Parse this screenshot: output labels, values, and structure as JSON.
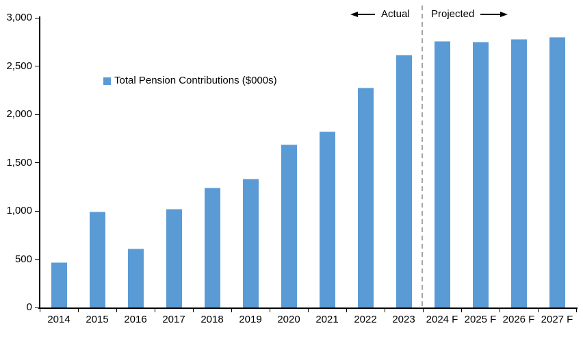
{
  "chart_data": {
    "type": "bar",
    "title": "",
    "legend": "Total Pension Contributions ($000s)",
    "categories": [
      "2014",
      "2015",
      "2016",
      "2017",
      "2018",
      "2019",
      "2020",
      "2021",
      "2022",
      "2023",
      "2024 F",
      "2025 F",
      "2026 F",
      "2027 F"
    ],
    "values": [
      470,
      990,
      610,
      1020,
      1240,
      1330,
      1690,
      1820,
      2280,
      2620,
      2760,
      2750,
      2780,
      2800
    ],
    "xlabel": "",
    "ylabel": "",
    "ylim": [
      0,
      3000
    ],
    "ytick_step": 500,
    "ytick_labels": [
      "0",
      "500",
      "1,000",
      "1,500",
      "2,000",
      "2,500",
      "3,000"
    ],
    "grid": false,
    "legend_position": "inside-upper-left",
    "annotations": {
      "actual_label": "Actual",
      "projected_label": "Projected",
      "divider_after_category": "2023"
    },
    "colors": {
      "bar": "#5B9BD5",
      "bar_top_edge": "#A9CBEA",
      "divider": "#A6A6A6",
      "axis": "#000000",
      "text": "#000000",
      "background": "#FFFFFF"
    }
  }
}
